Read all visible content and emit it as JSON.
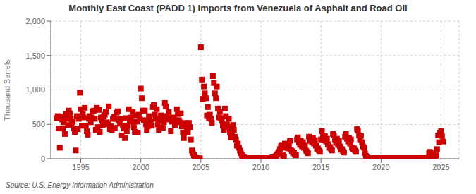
{
  "chart_data": {
    "type": "scatter",
    "title": "Monthly East Coast (PADD 1) Imports from Venezuela of Asphalt and Road Oil",
    "y_label": "Thousand Barrels",
    "annotations": [
      "Source: U.S. Energy Information Administration"
    ],
    "color": "#cc0000",
    "marker": "square",
    "grid": true,
    "xlim": [
      1992.5,
      2026.5
    ],
    "ylim": [
      0,
      2000
    ],
    "xticks": [
      1995,
      2000,
      2005,
      2010,
      2015,
      2020,
      2025
    ],
    "yticks": [
      0,
      500,
      {
        "value": 1000,
        "label": "1,000"
      },
      {
        "value": 1500,
        "label": "1,500"
      },
      {
        "value": 2000,
        "label": "2,000"
      }
    ],
    "x": [
      1993.0,
      1993.08,
      1993.17,
      1993.25,
      1993.33,
      1993.42,
      1993.5,
      1993.58,
      1993.67,
      1993.75,
      1993.83,
      1993.92,
      1994.0,
      1994.08,
      1994.17,
      1994.25,
      1994.33,
      1994.42,
      1994.5,
      1994.58,
      1994.67,
      1994.75,
      1994.83,
      1994.92,
      1995.0,
      1995.08,
      1995.17,
      1995.25,
      1995.33,
      1995.42,
      1995.5,
      1995.58,
      1995.67,
      1995.75,
      1995.83,
      1995.92,
      1996.0,
      1996.08,
      1996.17,
      1996.25,
      1996.33,
      1996.42,
      1996.5,
      1996.58,
      1996.67,
      1996.75,
      1996.83,
      1996.92,
      1997.0,
      1997.08,
      1997.17,
      1997.25,
      1997.33,
      1997.42,
      1997.5,
      1997.58,
      1997.67,
      1997.75,
      1997.83,
      1997.92,
      1998.0,
      1998.08,
      1998.17,
      1998.25,
      1998.33,
      1998.42,
      1998.5,
      1998.58,
      1998.67,
      1998.75,
      1998.83,
      1998.92,
      1999.0,
      1999.08,
      1999.17,
      1999.25,
      1999.33,
      1999.42,
      1999.5,
      1999.58,
      1999.67,
      1999.75,
      1999.83,
      1999.92,
      2000.0,
      2000.08,
      2000.17,
      2000.25,
      2000.33,
      2000.42,
      2000.5,
      2000.58,
      2000.67,
      2000.75,
      2000.83,
      2000.92,
      2001.0,
      2001.08,
      2001.17,
      2001.25,
      2001.33,
      2001.42,
      2001.5,
      2001.58,
      2001.67,
      2001.75,
      2001.83,
      2001.92,
      2002.0,
      2002.08,
      2002.17,
      2002.25,
      2002.33,
      2002.42,
      2002.5,
      2002.58,
      2002.67,
      2002.75,
      2002.83,
      2002.92,
      2003.0,
      2003.08,
      2003.17,
      2003.25,
      2003.33,
      2003.42,
      2003.5,
      2003.58,
      2003.67,
      2003.75,
      2003.83,
      2003.92,
      2004.0,
      2004.08,
      2004.17,
      2004.25,
      2004.33,
      2004.42,
      2004.5,
      2004.58,
      2004.67,
      2004.75,
      2004.83,
      2004.92,
      2005.0,
      2005.08,
      2005.17,
      2005.25,
      2005.33,
      2005.42,
      2005.5,
      2005.58,
      2005.67,
      2005.75,
      2005.83,
      2005.92,
      2006.0,
      2006.08,
      2006.17,
      2006.25,
      2006.33,
      2006.42,
      2006.5,
      2006.58,
      2006.67,
      2006.75,
      2006.83,
      2006.92,
      2007.0,
      2007.08,
      2007.17,
      2007.25,
      2007.33,
      2007.42,
      2007.5,
      2007.58,
      2007.67,
      2007.75,
      2007.83,
      2007.92,
      2008.0,
      2008.08,
      2008.17,
      2008.25,
      2008.33,
      2008.42,
      2008.5,
      2008.58,
      2008.67,
      2008.75,
      2008.83,
      2008.92,
      2009.0,
      2009.08,
      2009.17,
      2009.25,
      2009.33,
      2009.42,
      2009.5,
      2009.58,
      2009.67,
      2009.75,
      2009.83,
      2009.92,
      2010.0,
      2010.08,
      2010.17,
      2010.25,
      2010.33,
      2010.42,
      2010.5,
      2010.58,
      2010.67,
      2010.75,
      2010.83,
      2010.92,
      2011.0,
      2011.08,
      2011.17,
      2011.25,
      2011.33,
      2011.42,
      2011.5,
      2011.58,
      2011.67,
      2011.75,
      2011.83,
      2011.92,
      2012.0,
      2012.08,
      2012.17,
      2012.25,
      2012.33,
      2012.42,
      2012.5,
      2012.58,
      2012.67,
      2012.75,
      2012.83,
      2012.92,
      2013.0,
      2013.08,
      2013.17,
      2013.25,
      2013.33,
      2013.42,
      2013.5,
      2013.58,
      2013.67,
      2013.75,
      2013.83,
      2013.92,
      2014.0,
      2014.08,
      2014.17,
      2014.25,
      2014.33,
      2014.42,
      2014.5,
      2014.58,
      2014.67,
      2014.75,
      2014.83,
      2014.92,
      2015.0,
      2015.08,
      2015.17,
      2015.25,
      2015.33,
      2015.42,
      2015.5,
      2015.58,
      2015.67,
      2015.75,
      2015.83,
      2015.92,
      2016.0,
      2016.08,
      2016.17,
      2016.25,
      2016.33,
      2016.42,
      2016.5,
      2016.58,
      2016.67,
      2016.75,
      2016.83,
      2016.92,
      2017.0,
      2017.08,
      2017.17,
      2017.25,
      2017.33,
      2017.42,
      2017.5,
      2017.58,
      2017.67,
      2017.75,
      2017.83,
      2017.92,
      2018.0,
      2018.08,
      2018.17,
      2018.25,
      2018.33,
      2018.42,
      2018.5,
      2018.58,
      2018.67,
      2018.75,
      2018.83,
      2018.92,
      2019.0,
      2019.08,
      2019.17,
      2019.25,
      2019.33,
      2019.42,
      2019.5,
      2019.58,
      2019.67,
      2019.75,
      2019.83,
      2019.92,
      2020.0,
      2020.08,
      2020.17,
      2020.25,
      2020.33,
      2020.42,
      2020.5,
      2020.58,
      2020.67,
      2020.75,
      2020.83,
      2020.92,
      2021.0,
      2021.08,
      2021.17,
      2021.25,
      2021.33,
      2021.42,
      2021.5,
      2021.58,
      2021.67,
      2021.75,
      2021.83,
      2021.92,
      2022.0,
      2022.08,
      2022.17,
      2022.25,
      2022.33,
      2022.42,
      2022.5,
      2022.58,
      2022.67,
      2022.75,
      2022.83,
      2022.92,
      2023.0,
      2023.08,
      2023.17,
      2023.25,
      2023.33,
      2023.42,
      2023.5,
      2023.58,
      2023.67,
      2023.75,
      2023.83,
      2023.92,
      2024.0,
      2024.08,
      2024.17,
      2024.25,
      2024.33,
      2024.42,
      2024.5,
      2024.58,
      2024.67,
      2024.75,
      2024.83,
      2024.92,
      2025.0,
      2025.08,
      2025.17
    ],
    "values": [
      590,
      620,
      440,
      160,
      610,
      570,
      440,
      530,
      360,
      650,
      580,
      490,
      700,
      660,
      580,
      500,
      540,
      440,
      390,
      120,
      620,
      430,
      580,
      960,
      720,
      480,
      650,
      600,
      740,
      480,
      400,
      350,
      580,
      620,
      530,
      600,
      690,
      700,
      580,
      420,
      740,
      460,
      710,
      390,
      600,
      560,
      490,
      620,
      640,
      680,
      530,
      500,
      760,
      430,
      470,
      420,
      580,
      610,
      450,
      580,
      670,
      690,
      560,
      510,
      580,
      340,
      480,
      440,
      300,
      590,
      400,
      480,
      720,
      540,
      600,
      540,
      680,
      460,
      390,
      630,
      540,
      380,
      640,
      580,
      1020,
      880,
      700,
      560,
      700,
      500,
      420,
      470,
      620,
      580,
      540,
      480,
      750,
      780,
      640,
      580,
      720,
      500,
      420,
      560,
      630,
      600,
      450,
      530,
      810,
      760,
      620,
      570,
      680,
      590,
      400,
      540,
      600,
      570,
      490,
      560,
      720,
      650,
      560,
      530,
      660,
      470,
      380,
      300,
      520,
      490,
      420,
      380,
      520,
      460,
      280,
      120,
      80,
      50,
      20,
      10,
      5,
      5,
      5,
      5,
      1620,
      1150,
      870,
      1050,
      950,
      880,
      630,
      750,
      590,
      640,
      580,
      520,
      1200,
      1100,
      950,
      880,
      1050,
      730,
      600,
      680,
      590,
      550,
      480,
      420,
      730,
      620,
      500,
      460,
      580,
      380,
      310,
      380,
      490,
      420,
      320,
      280,
      190,
      220,
      160,
      120,
      80,
      50,
      30,
      20,
      10,
      5,
      5,
      5,
      5,
      5,
      5,
      5,
      5,
      5,
      5,
      5,
      5,
      5,
      5,
      5,
      5,
      5,
      5,
      5,
      5,
      5,
      5,
      5,
      5,
      5,
      10,
      15,
      20,
      15,
      20,
      40,
      60,
      80,
      100,
      140,
      180,
      200,
      50,
      30,
      220,
      160,
      190,
      150,
      200,
      260,
      130,
      110,
      80,
      90,
      60,
      50,
      280,
      310,
      240,
      200,
      260,
      180,
      240,
      160,
      200,
      120,
      100,
      80,
      320,
      260,
      280,
      240,
      300,
      220,
      270,
      190,
      140,
      150,
      120,
      100,
      280,
      400,
      320,
      270,
      330,
      250,
      290,
      210,
      160,
      170,
      140,
      120,
      360,
      340,
      280,
      230,
      290,
      200,
      260,
      180,
      130,
      140,
      110,
      90,
      320,
      360,
      290,
      250,
      300,
      220,
      280,
      160,
      140,
      150,
      120,
      100,
      430,
      410,
      340,
      280,
      330,
      240,
      180,
      160,
      80,
      40,
      20,
      10,
      5,
      5,
      5,
      5,
      5,
      5,
      5,
      5,
      5,
      5,
      5,
      5,
      5,
      5,
      5,
      5,
      5,
      5,
      5,
      5,
      5,
      5,
      5,
      5,
      5,
      5,
      5,
      5,
      5,
      5,
      5,
      5,
      5,
      5,
      5,
      5,
      5,
      5,
      5,
      5,
      5,
      5,
      5,
      5,
      5,
      5,
      5,
      5,
      5,
      5,
      5,
      5,
      5,
      5,
      5,
      5,
      5,
      5,
      5,
      5,
      80,
      100,
      80,
      60,
      40,
      30,
      20,
      50,
      140,
      340,
      240,
      380,
      400,
      330,
      250
    ]
  }
}
